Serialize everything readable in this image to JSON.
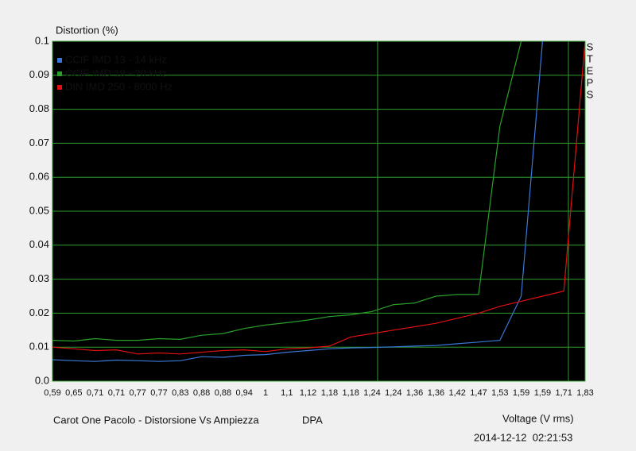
{
  "chart_data": {
    "type": "line",
    "title": "Distortion (%)",
    "x_label": "Voltage (V rms)",
    "side_label": "STEPS",
    "footer": "Carot One Pacolo - Distorsione Vs Ampiezza",
    "footer_tag": "DPA",
    "timestamp": "2014-12-12  02:21:53",
    "categories": [
      "0,59",
      "0,65",
      "0,71",
      "0,71",
      "0,77",
      "0,77",
      "0,83",
      "0,88",
      "0,88",
      "0,94",
      "1",
      "1,1",
      "1,12",
      "1,18",
      "1,18",
      "1,24",
      "1,24",
      "1,36",
      "1,36",
      "1,42",
      "1,47",
      "1,53",
      "1,59",
      "1,59",
      "1,71",
      "1,83"
    ],
    "series": [
      {
        "name": "CCIF IMD 13 - 14 kHz",
        "color": "#3a78d8",
        "values": [
          0.0063,
          0.006,
          0.0058,
          0.0062,
          0.006,
          0.0058,
          0.006,
          0.0072,
          0.007,
          0.0076,
          0.0078,
          0.0085,
          0.009,
          0.0095,
          0.0098,
          0.0099,
          0.0101,
          0.0103,
          0.0105,
          0.011,
          0.0115,
          0.012,
          0.025,
          0.1,
          null,
          null
        ]
      },
      {
        "name": "CCIF IMD 19 - 20 kHz",
        "color": "#2aa02a",
        "values": [
          0.012,
          0.0118,
          0.0125,
          0.012,
          0.012,
          0.0125,
          0.0123,
          0.0135,
          0.014,
          0.0155,
          0.0165,
          0.0172,
          0.018,
          0.019,
          0.0195,
          0.0205,
          0.0225,
          0.023,
          0.025,
          0.0255,
          0.0255,
          0.075,
          0.1,
          null,
          null,
          null
        ]
      },
      {
        "name": "DIN IMD 250 - 8000 Hz",
        "color": "#e01010",
        "values": [
          0.01,
          0.0095,
          0.009,
          0.0092,
          0.008,
          0.0083,
          0.008,
          0.0085,
          0.009,
          0.0092,
          0.0087,
          0.0095,
          0.0098,
          0.0103,
          0.013,
          0.014,
          0.015,
          0.016,
          0.017,
          0.0185,
          0.02,
          0.022,
          0.0235,
          0.025,
          0.0265,
          0.1
        ]
      }
    ],
    "ylim": [
      0,
      0.1
    ],
    "yticks": [
      {
        "value": 0,
        "label": "0.0"
      },
      0.01,
      0.02,
      0.03,
      0.04,
      0.05,
      0.06,
      0.07,
      0.08,
      0.09,
      0.1
    ],
    "grid": true
  }
}
